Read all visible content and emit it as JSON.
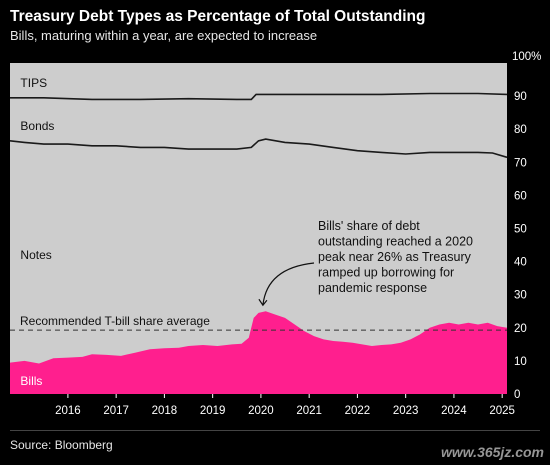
{
  "title": "Treasury Debt Types as Percentage of Total Outstanding",
  "subtitle": "Bills, maturing within a year, are expected to increase",
  "source": "Source: Bloomberg",
  "watermark": "www.365jz.com",
  "colors": {
    "background": "#000000",
    "plot_fill": "#cdcdcd",
    "bills": "#ff1f8e",
    "lines": "#1a1a1a",
    "text": "#ffffff"
  },
  "chart_data": {
    "type": "area",
    "y_unit_label": "100%",
    "ylim": [
      0,
      100
    ],
    "yticks": [
      0,
      10,
      20,
      30,
      40,
      50,
      60,
      70,
      80,
      90
    ],
    "xlim": [
      2015.3,
      2025.6
    ],
    "xticks": [
      "2016",
      "2017",
      "2018",
      "2019",
      "2020",
      "2021",
      "2022",
      "2023",
      "2024",
      "2025"
    ],
    "series": [
      {
        "name": "Bills",
        "x": [
          2015.3,
          2015.6,
          2015.9,
          2016.2,
          2016.5,
          2016.8,
          2017.0,
          2017.3,
          2017.6,
          2017.9,
          2018.2,
          2018.5,
          2018.8,
          2019.0,
          2019.3,
          2019.6,
          2019.9,
          2020.1,
          2020.25,
          2020.35,
          2020.45,
          2020.6,
          2020.8,
          2021.0,
          2021.2,
          2021.4,
          2021.6,
          2021.8,
          2022.0,
          2022.2,
          2022.4,
          2022.6,
          2022.8,
          2023.0,
          2023.2,
          2023.4,
          2023.6,
          2023.8,
          2024.0,
          2024.2,
          2024.4,
          2024.6,
          2024.8,
          2025.0,
          2025.2,
          2025.4,
          2025.6
        ],
        "values": [
          9.5,
          10.0,
          9.2,
          10.8,
          11.0,
          11.2,
          12.0,
          11.8,
          11.5,
          12.5,
          13.5,
          13.8,
          14.0,
          14.5,
          14.8,
          14.5,
          15.0,
          15.2,
          17.0,
          23.0,
          24.5,
          25.0,
          24.0,
          23.0,
          21.0,
          19.0,
          17.5,
          16.5,
          16.0,
          15.8,
          15.5,
          15.0,
          14.5,
          14.8,
          15.0,
          15.5,
          16.5,
          18.0,
          20.0,
          21.0,
          21.5,
          21.0,
          21.5,
          21.0,
          21.5,
          20.5,
          20.0
        ]
      },
      {
        "name": "Notes",
        "x": [
          2015.3,
          2015.6,
          2016.0,
          2016.5,
          2017.0,
          2017.5,
          2018.0,
          2018.5,
          2019.0,
          2019.5,
          2020.0,
          2020.3,
          2020.45,
          2020.6,
          2021.0,
          2021.5,
          2022.0,
          2022.5,
          2023.0,
          2023.5,
          2024.0,
          2024.5,
          2025.0,
          2025.3,
          2025.6
        ],
        "values": [
          76.5,
          76.0,
          75.5,
          75.5,
          75.0,
          75.0,
          74.5,
          74.5,
          74.0,
          74.0,
          74.0,
          74.5,
          76.5,
          77.0,
          76.0,
          75.5,
          74.5,
          73.5,
          73.0,
          72.5,
          73.0,
          73.0,
          73.0,
          72.8,
          71.5
        ]
      },
      {
        "name": "Bonds",
        "x": [
          2015.3,
          2016.0,
          2017.0,
          2018.0,
          2019.0,
          2020.0,
          2020.3,
          2020.4,
          2021.0,
          2022.0,
          2023.0,
          2024.0,
          2025.0,
          2025.6
        ],
        "values": [
          89.5,
          89.5,
          89.0,
          89.0,
          89.2,
          89.0,
          89.0,
          90.5,
          90.5,
          90.5,
          90.5,
          90.8,
          90.8,
          90.5
        ]
      },
      {
        "name": "TIPS",
        "x": [
          2015.3,
          2025.6
        ],
        "values": [
          100,
          100
        ]
      }
    ],
    "reference_line": {
      "label": "Recommended T-bill share average",
      "value": 19.3
    },
    "annotation": {
      "text": [
        "Bills' share of debt",
        "outstanding reached a 2020",
        "peak near 26% as Treasury",
        "ramped up borrowing for",
        "pandemic response"
      ],
      "target": [
        2020.5,
        25.0
      ]
    },
    "area_labels": [
      {
        "text": "TIPS",
        "x": 2015.35,
        "y": 94
      },
      {
        "text": "Bonds",
        "x": 2015.35,
        "y": 81
      },
      {
        "text": "Notes",
        "x": 2015.35,
        "y": 42
      },
      {
        "text": "Bills",
        "x": 2015.35,
        "y": 4
      }
    ],
    "grid": false,
    "legend": "none"
  }
}
